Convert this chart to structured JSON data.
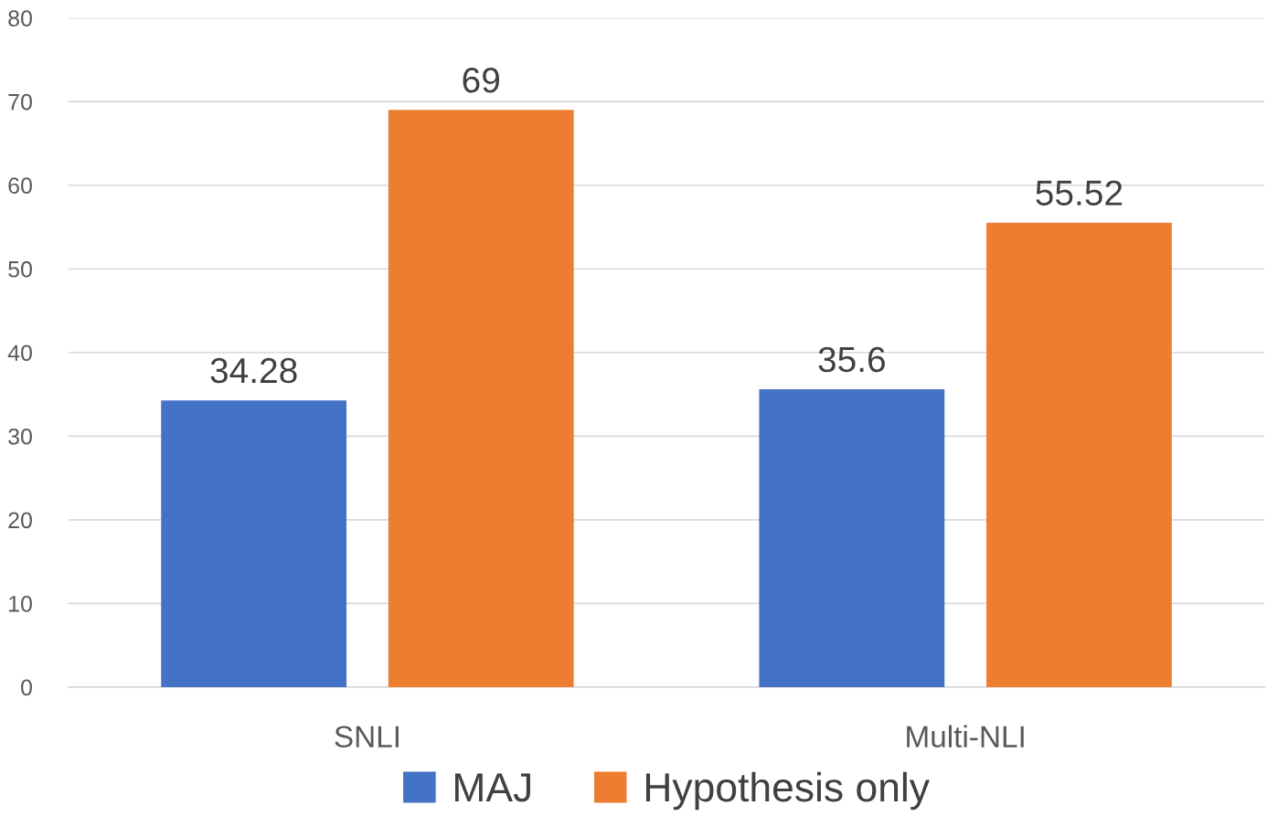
{
  "chart_data": {
    "type": "bar",
    "categories": [
      "SNLI",
      "Multi-NLI"
    ],
    "series": [
      {
        "name": "MAJ",
        "color": "#4472c4",
        "values": [
          34.28,
          35.6
        ]
      },
      {
        "name": "Hypothesis only",
        "color": "#ed7d31",
        "values": [
          69,
          55.52
        ]
      }
    ],
    "ylim": [
      0,
      80
    ],
    "yticks": [
      0,
      10,
      20,
      30,
      40,
      50,
      60,
      70,
      80
    ],
    "grid": "y",
    "legend": "bottom",
    "data_labels": true
  }
}
